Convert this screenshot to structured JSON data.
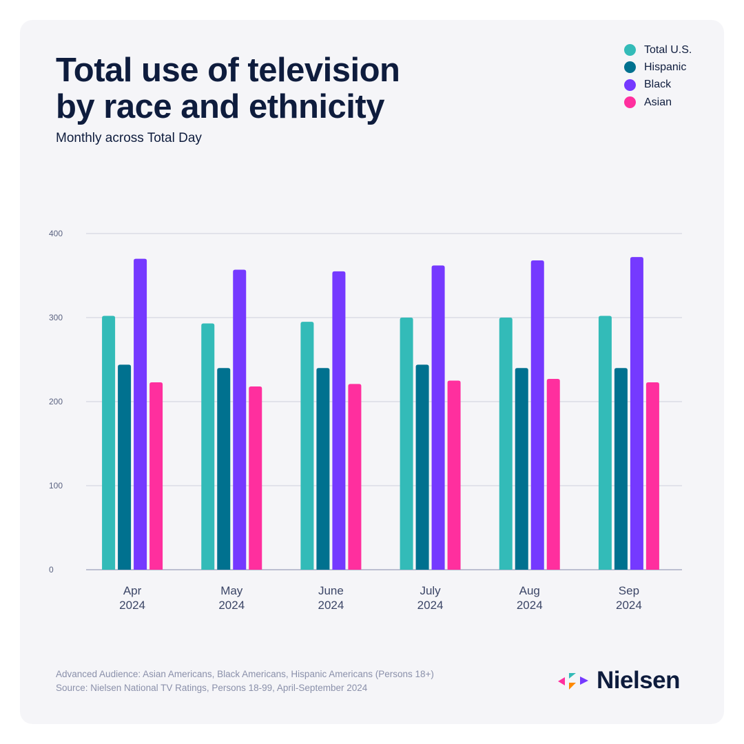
{
  "title_line1": "Total use of television",
  "title_line2": "by race and ethnicity",
  "subtitle": "Monthly across Total Day",
  "legend": [
    {
      "label": "Total U.S.",
      "color": "#33bbb8"
    },
    {
      "label": "Hispanic",
      "color": "#00718f"
    },
    {
      "label": "Black",
      "color": "#7539ff"
    },
    {
      "label": "Asian",
      "color": "#ff2f9e"
    }
  ],
  "chart_data": {
    "type": "bar",
    "categories": [
      [
        "Apr",
        "2024"
      ],
      [
        "May",
        "2024"
      ],
      [
        "June",
        "2024"
      ],
      [
        "July",
        "2024"
      ],
      [
        "Aug",
        "2024"
      ],
      [
        "Sep",
        "2024"
      ]
    ],
    "series": [
      {
        "name": "Total U.S.",
        "color": "#33bbb8",
        "values": [
          302,
          293,
          295,
          300,
          300,
          302
        ]
      },
      {
        "name": "Hispanic",
        "color": "#00718f",
        "values": [
          244,
          240,
          240,
          244,
          240,
          240
        ]
      },
      {
        "name": "Black",
        "color": "#7539ff",
        "values": [
          370,
          357,
          355,
          362,
          368,
          372
        ]
      },
      {
        "name": "Asian",
        "color": "#ff2f9e",
        "values": [
          223,
          218,
          221,
          225,
          227,
          223
        ]
      }
    ],
    "yticks": [
      0,
      100,
      200,
      300,
      400
    ],
    "ylim": [
      0,
      400
    ],
    "grid": true,
    "legend_position": "top-right"
  },
  "footer_line1": "Advanced Audience: Asian Americans, Black Americans, Hispanic Americans (Persons 18+)",
  "footer_line2": "Source: Nielsen National TV Ratings, Persons 18-99, April-September 2024",
  "brand": "Nielsen",
  "logo_colors": [
    "#ff2f9e",
    "#33bbb8",
    "#7539ff",
    "#ff8a00"
  ]
}
